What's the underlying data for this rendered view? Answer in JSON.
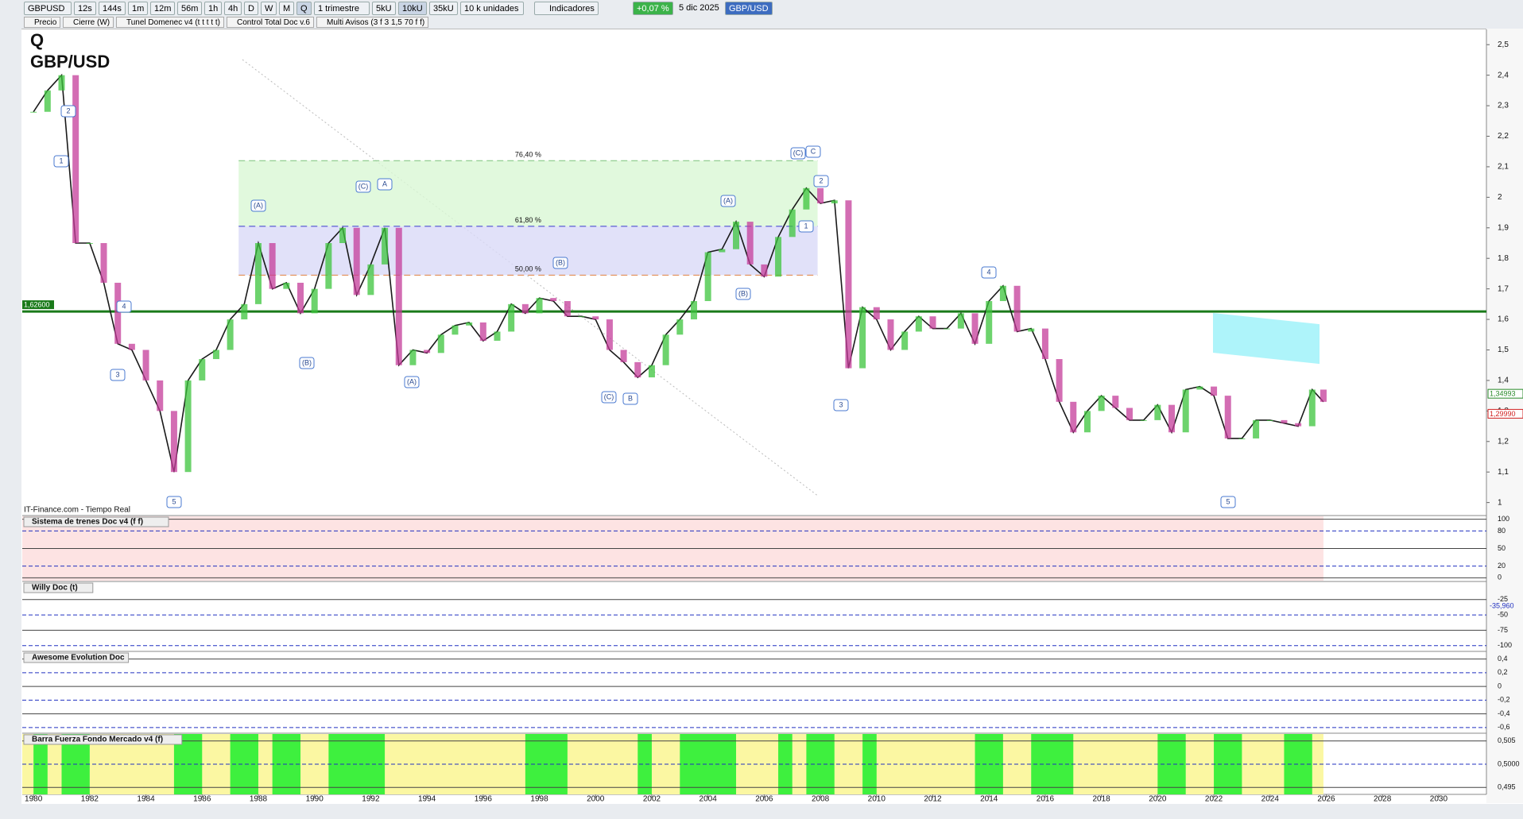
{
  "toolbar": {
    "symbol": "GBPUSD",
    "timeframes": [
      "12s",
      "144s",
      "1m",
      "12m",
      "56m",
      "1h",
      "4h",
      "D",
      "W",
      "M",
      "Q"
    ],
    "period": "1 trimestre",
    "units": [
      "5kU",
      "10kU",
      "35kU"
    ],
    "units_select": "10 k unidades",
    "indicators": "Indicadores",
    "change": "+0,07 %",
    "date": "5 dic 2025",
    "pair": "GBP/USD"
  },
  "legend": [
    "Precio",
    "Cierre (W)",
    "Tunel Domenec v4 (t t t t t)",
    "Control Total Doc v.6",
    "Multi Avisos (3 f 3 1,5 70 f f)"
  ],
  "chart_data": {
    "type": "line",
    "title": "Q",
    "subtitle": "GBP/USD",
    "source": "IT-Finance.com - Tiempo Real",
    "color": "#1a1a1a",
    "x": [
      1980,
      1980.5,
      1981,
      1981.5,
      1982,
      1982.5,
      1983,
      1983.5,
      1984,
      1984.5,
      1985,
      1985.5,
      1986,
      1986.5,
      1987,
      1987.5,
      1988,
      1988.5,
      1989,
      1989.5,
      1990,
      1990.5,
      1991,
      1991.5,
      1992,
      1992.5,
      1993,
      1993.5,
      1994,
      1994.5,
      1995,
      1995.5,
      1996,
      1996.5,
      1997,
      1997.5,
      1998,
      1998.5,
      1999,
      1999.5,
      2000,
      2000.5,
      2001,
      2001.5,
      2002,
      2002.5,
      2003,
      2003.5,
      2004,
      2004.5,
      2005,
      2005.5,
      2006,
      2006.5,
      2007,
      2007.5,
      2008,
      2008.5,
      2009,
      2009.5,
      2010,
      2010.5,
      2011,
      2011.5,
      2012,
      2012.5,
      2013,
      2013.5,
      2014,
      2014.5,
      2015,
      2015.5,
      2016,
      2016.5,
      2017,
      2017.5,
      2018,
      2018.5,
      2019,
      2019.5,
      2020,
      2020.5,
      2021,
      2021.5,
      2022,
      2022.5,
      2023,
      2023.5,
      2024,
      2024.5,
      2025,
      2025.5,
      2025.9
    ],
    "values": [
      2.28,
      2.35,
      2.4,
      1.85,
      1.85,
      1.72,
      1.52,
      1.5,
      1.4,
      1.3,
      1.1,
      1.4,
      1.47,
      1.5,
      1.6,
      1.65,
      1.85,
      1.7,
      1.72,
      1.62,
      1.7,
      1.85,
      1.9,
      1.68,
      1.78,
      1.9,
      1.45,
      1.5,
      1.49,
      1.55,
      1.58,
      1.59,
      1.53,
      1.56,
      1.65,
      1.62,
      1.67,
      1.66,
      1.61,
      1.61,
      1.6,
      1.5,
      1.46,
      1.41,
      1.45,
      1.55,
      1.6,
      1.66,
      1.82,
      1.83,
      1.92,
      1.78,
      1.74,
      1.87,
      1.96,
      2.03,
      1.98,
      1.99,
      1.44,
      1.64,
      1.6,
      1.5,
      1.56,
      1.61,
      1.57,
      1.57,
      1.62,
      1.52,
      1.66,
      1.71,
      1.56,
      1.57,
      1.47,
      1.33,
      1.23,
      1.3,
      1.35,
      1.31,
      1.27,
      1.27,
      1.32,
      1.23,
      1.37,
      1.38,
      1.35,
      1.21,
      1.21,
      1.27,
      1.27,
      1.26,
      1.25,
      1.37,
      1.33
    ],
    "xlim": [
      1979.6,
      2031.7
    ],
    "ylim": [
      0.96,
      2.55
    ],
    "xticks": [
      1980,
      1982,
      1984,
      1986,
      1988,
      1990,
      1992,
      1994,
      1996,
      1998,
      2000,
      2002,
      2004,
      2006,
      2008,
      2010,
      2012,
      2014,
      2016,
      2018,
      2020,
      2022,
      2024,
      2026,
      2028,
      2030
    ],
    "yticks": [
      1,
      {
        "value": 1.1,
        "label": "1,1"
      },
      {
        "value": 1.2,
        "label": "1,2"
      },
      {
        "value": 1.3,
        "label": "1,3"
      },
      {
        "value": 1.4,
        "label": "1,4"
      },
      {
        "value": 1.5,
        "label": "1,5"
      },
      {
        "value": 1.6,
        "label": "1,6"
      },
      {
        "value": 1.7,
        "label": "1,7"
      },
      {
        "value": 1.8,
        "label": "1,8"
      },
      {
        "value": 1.9,
        "label": "1,9"
      },
      2,
      {
        "value": 2.1,
        "label": "2,1"
      },
      {
        "value": 2.2,
        "label": "2,2"
      },
      {
        "value": 2.3,
        "label": "2,3"
      },
      {
        "value": 2.4,
        "label": "2,4"
      },
      {
        "value": 2.5,
        "label": "2,5"
      }
    ],
    "level": {
      "value": 1.626,
      "label": "1,62600"
    },
    "last_prices": [
      {
        "value": 1.34993,
        "label": "1,34993"
      },
      {
        "value": 1.2999,
        "label": "1,29990"
      }
    ],
    "fib_levels": [
      {
        "value": 2.12,
        "label": "76,40 %"
      },
      {
        "value": 1.905,
        "label": "61,80 %"
      },
      {
        "value": 1.745,
        "label": "50,00 %"
      }
    ],
    "wave_labels": [
      "1",
      "2",
      "3",
      "4",
      "5",
      "(A)",
      "(B)",
      "(C)",
      "A",
      "(A)",
      "(B)",
      "(C)",
      "B",
      "(A)",
      "(B)",
      "(C)",
      "C",
      "2",
      "1",
      "3",
      "4",
      "5"
    ]
  },
  "panels": [
    {
      "title": "Sistema de trenes Doc v4 (f f)",
      "ylim": [
        -5,
        105
      ],
      "yticks": [
        100,
        80,
        50,
        20,
        0
      ]
    },
    {
      "title": "Willy Doc (t)",
      "ylim": [
        -108,
        3
      ],
      "yticks": [
        -25,
        -50,
        -75,
        -100
      ],
      "value": {
        "value": -35.96,
        "label": "-35,960"
      }
    },
    {
      "title": "Awesome Evolution Doc",
      "ylim": [
        -0.66,
        0.5
      ],
      "yticks": [
        {
          "value": 0.4,
          "label": "0,4"
        },
        {
          "value": 0.2,
          "label": "0,2"
        },
        0,
        {
          "value": -0.2,
          "label": "-0,2"
        },
        {
          "value": -0.4,
          "label": "-0,4"
        },
        {
          "value": -0.6,
          "label": "-0,6"
        }
      ]
    },
    {
      "title": "Barra Fuerza Fondo Mercado v4 (f)",
      "ylim": [
        0.4935,
        0.5065
      ],
      "yticks": [
        {
          "value": 0.505,
          "label": "0,505"
        },
        {
          "value": 0.5,
          "label": "0,5000"
        },
        {
          "value": 0.495,
          "label": "0,495"
        }
      ],
      "green_periods": [
        [
          1980,
          1980.5
        ],
        [
          1981,
          1982
        ],
        [
          1985,
          1986
        ],
        [
          1987,
          1988
        ],
        [
          1988.5,
          1989.5
        ],
        [
          1990.5,
          1992.5
        ],
        [
          1997.5,
          1999
        ],
        [
          2001.5,
          2002
        ],
        [
          2003,
          2005
        ],
        [
          2006.5,
          2007
        ],
        [
          2007.5,
          2008.5
        ],
        [
          2009.5,
          2010
        ],
        [
          2013.5,
          2014.5
        ],
        [
          2015.5,
          2017
        ],
        [
          2020,
          2021
        ],
        [
          2022,
          2023
        ],
        [
          2024.5,
          2025.5
        ]
      ]
    }
  ]
}
